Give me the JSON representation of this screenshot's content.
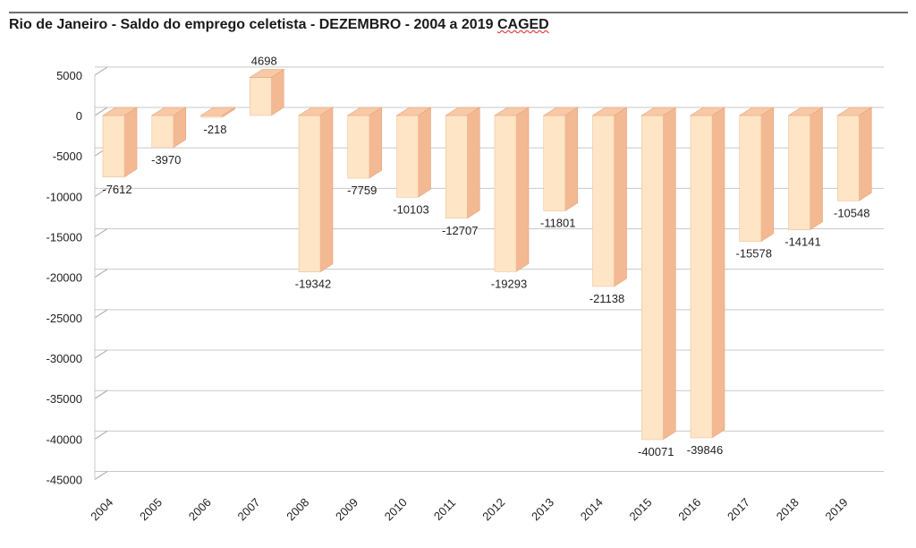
{
  "chart_data": {
    "type": "bar",
    "title_main": "Rio de Janeiro - Saldo do emprego celetista - DEZEMBRO - 2004 a 2019",
    "title_source": "CAGED",
    "categories": [
      "2004",
      "2005",
      "2006",
      "2007",
      "2008",
      "2009",
      "2010",
      "2011",
      "2012",
      "2013",
      "2014",
      "2015",
      "2016",
      "2017",
      "2018",
      "2019"
    ],
    "values": [
      -7612,
      -3970,
      -218,
      4698,
      -19342,
      -7759,
      -10103,
      -12707,
      -19293,
      -11801,
      -21138,
      -40071,
      -39846,
      -15578,
      -14141,
      -10548
    ],
    "ylim": [
      -45000,
      5000
    ],
    "yticks": [
      5000,
      0,
      -5000,
      -10000,
      -15000,
      -20000,
      -25000,
      -30000,
      -35000,
      -40000,
      -45000
    ],
    "grid": true,
    "style": "3d-column",
    "colors": {
      "bar_front": "#fde5c6",
      "bar_side": "#f3b993",
      "bar_top": "#f7c9a6",
      "grid": "#b3b3b3"
    }
  }
}
